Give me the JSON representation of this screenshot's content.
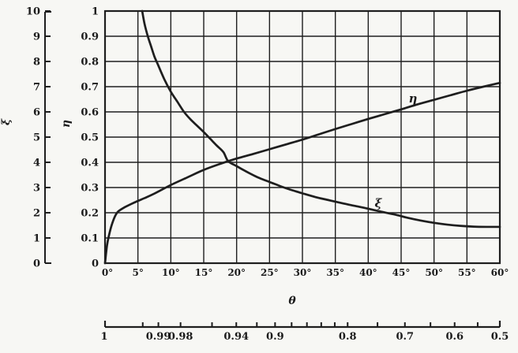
{
  "figure": {
    "background": "#f7f7f4",
    "ink": "#1e1e1e"
  },
  "chart_data": {
    "type": "line",
    "title": "",
    "grid": {
      "x_step_deg": 5,
      "y_step": 0.1,
      "grid_on": true
    },
    "x_axis": {
      "label": "θ",
      "range_deg": [
        0,
        60
      ],
      "tick_values": [
        0,
        5,
        10,
        15,
        20,
        25,
        30,
        35,
        40,
        45,
        50,
        55,
        60
      ],
      "tick_labels": [
        "0°",
        "5°",
        "10°",
        "15°",
        "20°",
        "25°",
        "30°",
        "35°",
        "40°",
        "45°",
        "50°",
        "55°",
        "60°"
      ]
    },
    "xi_axis": {
      "label": "ξ",
      "range": [
        0,
        10
      ],
      "tick_values": [
        10,
        9,
        8,
        7,
        6,
        5,
        4,
        3,
        2,
        1,
        0
      ],
      "tick_labels": [
        "10",
        "9",
        "8",
        "7",
        "6",
        "5",
        "4",
        "3",
        "2",
        "1",
        "0"
      ]
    },
    "eta_axis": {
      "label": "η",
      "range": [
        0,
        1
      ],
      "tick_values": [
        1,
        0.9,
        0.8,
        0.7,
        0.6,
        0.5,
        0.4,
        0.3,
        0.2,
        0.1,
        0
      ],
      "tick_labels": [
        "1",
        "0.9",
        "0.8",
        "0.7",
        "0.6",
        "0.5",
        "0.4",
        "0.3",
        "0.2",
        "0.1",
        "0"
      ]
    },
    "cos_theta_scale": {
      "description": "secondary bottom scale: cos θ mapped onto the linear θ axis",
      "tick_values": [
        1,
        0.995,
        0.99,
        0.98,
        0.96,
        0.94,
        0.92,
        0.9,
        0.88,
        0.86,
        0.84,
        0.82,
        0.8,
        0.75,
        0.7,
        0.65,
        0.6,
        0.55,
        0.5
      ],
      "labeled_values": [
        1,
        0.99,
        0.98,
        0.94,
        0.9,
        0.8,
        0.7,
        0.6,
        0.5
      ],
      "labels": [
        "1",
        "0.99",
        "0.98",
        "0.94",
        "0.9",
        "0.8",
        "0.7",
        "0.6",
        "0.5"
      ]
    },
    "series": [
      {
        "name": "eta-curve",
        "label": "η",
        "scale": "eta (0–1)",
        "points_theta_eta": [
          [
            0,
            0
          ],
          [
            0.3,
            0.07
          ],
          [
            0.6,
            0.11
          ],
          [
            1,
            0.15
          ],
          [
            1.5,
            0.185
          ],
          [
            2,
            0.205
          ],
          [
            3,
            0.222
          ],
          [
            4,
            0.235
          ],
          [
            5,
            0.247
          ],
          [
            6,
            0.258
          ],
          [
            7.5,
            0.276
          ],
          [
            10,
            0.31
          ],
          [
            12.5,
            0.34
          ],
          [
            15,
            0.37
          ],
          [
            17.5,
            0.394
          ],
          [
            20,
            0.415
          ],
          [
            22.5,
            0.433
          ],
          [
            25,
            0.452
          ],
          [
            27.5,
            0.471
          ],
          [
            30,
            0.49
          ],
          [
            32.5,
            0.511
          ],
          [
            35,
            0.532
          ],
          [
            37.5,
            0.552
          ],
          [
            40,
            0.572
          ],
          [
            42.5,
            0.591
          ],
          [
            45,
            0.61
          ],
          [
            47.5,
            0.63
          ],
          [
            50,
            0.648
          ],
          [
            52.5,
            0.666
          ],
          [
            55,
            0.684
          ],
          [
            57.5,
            0.7
          ],
          [
            60,
            0.715
          ]
        ]
      },
      {
        "name": "xi-curve",
        "label": "ξ",
        "scale": "xi (0–10)",
        "points_theta_xi": [
          [
            5.65,
            10
          ],
          [
            6,
            9.5
          ],
          [
            6.5,
            9.0
          ],
          [
            7,
            8.6
          ],
          [
            7.5,
            8.2
          ],
          [
            8,
            7.9
          ],
          [
            9,
            7.3
          ],
          [
            10,
            6.8
          ],
          [
            11,
            6.4
          ],
          [
            12,
            6.0
          ],
          [
            13,
            5.7
          ],
          [
            14,
            5.45
          ],
          [
            15,
            5.2
          ],
          [
            16,
            4.93
          ],
          [
            17,
            4.66
          ],
          [
            18,
            4.4
          ],
          [
            18.7,
            4.05
          ],
          [
            20,
            3.85
          ],
          [
            21,
            3.7
          ],
          [
            22,
            3.56
          ],
          [
            23,
            3.43
          ],
          [
            24,
            3.32
          ],
          [
            25,
            3.22
          ],
          [
            26,
            3.12
          ],
          [
            27,
            3.02
          ],
          [
            28,
            2.93
          ],
          [
            29,
            2.85
          ],
          [
            30,
            2.77
          ],
          [
            32,
            2.62
          ],
          [
            34,
            2.5
          ],
          [
            36,
            2.38
          ],
          [
            38,
            2.27
          ],
          [
            40,
            2.16
          ],
          [
            42,
            2.04
          ],
          [
            44,
            1.93
          ],
          [
            46,
            1.8
          ],
          [
            48,
            1.69
          ],
          [
            50,
            1.6
          ],
          [
            52,
            1.53
          ],
          [
            54,
            1.48
          ],
          [
            56,
            1.45
          ],
          [
            58,
            1.44
          ],
          [
            60,
            1.44
          ]
        ]
      }
    ],
    "curve_labels": {
      "eta": "η",
      "xi": "ξ"
    },
    "crossing_point_note": "curves intersect near θ = 18.5°, η = 0.40, ξ = 4.0"
  }
}
